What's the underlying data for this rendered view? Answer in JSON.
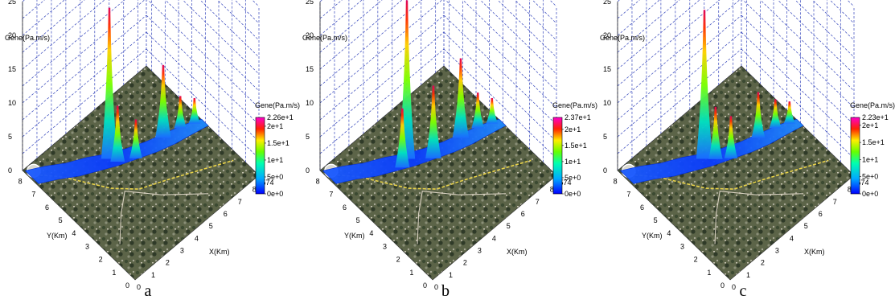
{
  "figure": {
    "panel_labels": [
      "a",
      "b",
      "c"
    ]
  },
  "colors": {
    "grid": "#3344bb",
    "axis": "#222222",
    "river_low": "#0a3cff",
    "river_mid": "#1fa8ff",
    "peak_high": "#e0005a",
    "terrain_dark": "#3c4a32",
    "terrain_light": "#8a8f78",
    "road": "#e8d24a"
  },
  "chart_data": [
    {
      "type": "surface3d",
      "panel": "a",
      "zlabel": "Gene(Pa.m/s)",
      "xlabel": "X(Km)",
      "ylabel": "Y(Km)",
      "zticks": [
        "0",
        "5",
        "10",
        "15",
        "20",
        "25"
      ],
      "xticks": [
        "0",
        "1",
        "2",
        "3",
        "4",
        "5",
        "6",
        "7",
        "8"
      ],
      "yticks": [
        "0",
        "1",
        "2",
        "3",
        "4",
        "5",
        "6",
        "7",
        "8"
      ],
      "x_end_label": "8.574",
      "zlim": [
        0,
        25
      ],
      "colorbar": {
        "title": "Gene(Pa.m/s)",
        "max_label": "2.26e+1",
        "ticks": [
          "2e+1",
          "1.5e+1",
          "1e+1",
          "5e+0",
          "0e+0"
        ],
        "range": [
          0,
          22.6
        ]
      },
      "peaks": [
        {
          "x": 3.6,
          "y": 5.8,
          "z": 22.6
        },
        {
          "x": 3.8,
          "y": 5.4,
          "z": 8.5
        },
        {
          "x": 4.6,
          "y": 4.9,
          "z": 6.0
        },
        {
          "x": 6.4,
          "y": 4.8,
          "z": 11.0
        },
        {
          "x": 7.4,
          "y": 4.6,
          "z": 5.0
        },
        {
          "x": 8.1,
          "y": 4.3,
          "z": 4.0
        }
      ]
    },
    {
      "type": "surface3d",
      "panel": "b",
      "zlabel": "Gene(Pa.m/s)",
      "xlabel": "X(Km)",
      "ylabel": "Y(Km)",
      "zticks": [
        "0",
        "5",
        "10",
        "15",
        "20",
        "25"
      ],
      "xticks": [
        "0",
        "1",
        "2",
        "3",
        "4",
        "5",
        "6",
        "7",
        "8"
      ],
      "yticks": [
        "0",
        "1",
        "2",
        "3",
        "4",
        "5",
        "6",
        "7",
        "8"
      ],
      "x_end_label": "8.574",
      "zlim": [
        0,
        25
      ],
      "colorbar": {
        "title": "Gene(Pa.m/s)",
        "max_label": "2.37e+1",
        "ticks": [
          "2e+1",
          "1.5e+1",
          "1e+1",
          "5e+0",
          "0e+0"
        ],
        "range": [
          0,
          23.7
        ]
      },
      "peaks": [
        {
          "x": 3.6,
          "y": 5.8,
          "z": 23.7
        },
        {
          "x": 3.1,
          "y": 5.6,
          "z": 9.0
        },
        {
          "x": 4.6,
          "y": 4.9,
          "z": 11.0
        },
        {
          "x": 6.4,
          "y": 4.8,
          "z": 12.0
        },
        {
          "x": 7.4,
          "y": 4.6,
          "z": 5.5
        },
        {
          "x": 8.1,
          "y": 4.3,
          "z": 4.0
        }
      ]
    },
    {
      "type": "surface3d",
      "panel": "c",
      "zlabel": "Gene(Pa.m/s)",
      "xlabel": "X(Km)",
      "ylabel": "Y(Km)",
      "zticks": [
        "0",
        "5",
        "10",
        "15",
        "20",
        "25"
      ],
      "xticks": [
        "0",
        "1",
        "2",
        "3",
        "4",
        "5",
        "6",
        "7",
        "8"
      ],
      "yticks": [
        "0",
        "1",
        "2",
        "3",
        "4",
        "5",
        "6",
        "7",
        "8"
      ],
      "x_end_label": "8.574",
      "zlim": [
        0,
        25
      ],
      "colorbar": {
        "title": "Gene(Pa.m/s)",
        "max_label": "2.23e+1",
        "ticks": [
          "2e+1",
          "1.5e+1",
          "1e+1",
          "5e+0",
          "0e+0"
        ],
        "range": [
          0,
          22.3
        ]
      },
      "peaks": [
        {
          "x": 3.6,
          "y": 5.8,
          "z": 22.3
        },
        {
          "x": 4.0,
          "y": 5.4,
          "z": 8.0
        },
        {
          "x": 4.6,
          "y": 4.9,
          "z": 6.5
        },
        {
          "x": 6.4,
          "y": 4.8,
          "z": 7.0
        },
        {
          "x": 7.4,
          "y": 4.6,
          "z": 4.5
        },
        {
          "x": 8.1,
          "y": 4.3,
          "z": 3.5
        }
      ]
    }
  ]
}
